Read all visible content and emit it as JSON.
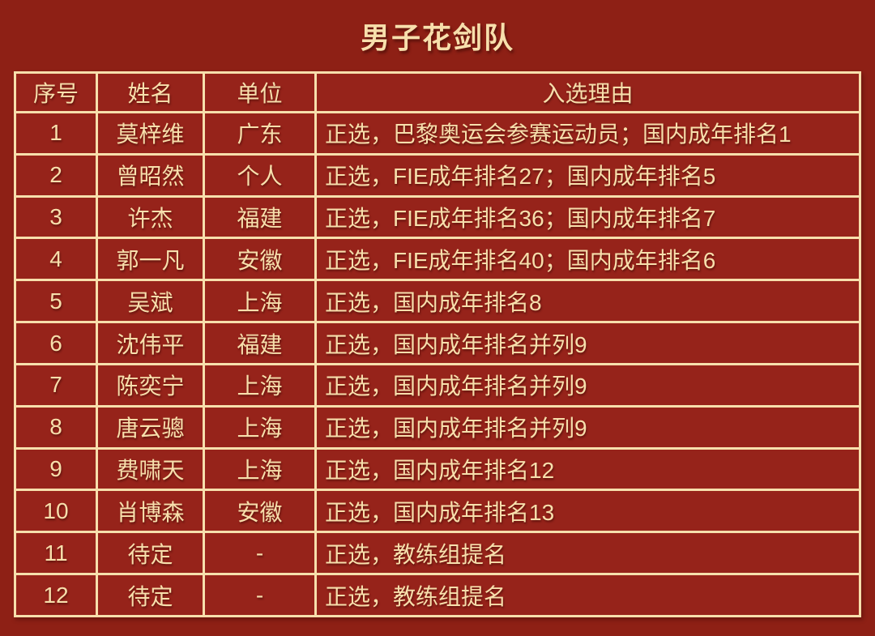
{
  "page": {
    "background_color": "#8E2015",
    "cell_background_color": "#96231A",
    "accent_text_color": "#F7DFAC"
  },
  "title": "男子花剑队",
  "table": {
    "headers": [
      "序号",
      "姓名",
      "单位",
      "入选理由"
    ],
    "rows": [
      {
        "no": "1",
        "name": "莫梓维",
        "unit": "广东",
        "reason": "正选，巴黎奥运会参赛运动员；国内成年排名1"
      },
      {
        "no": "2",
        "name": "曾昭然",
        "unit": "个人",
        "reason": "正选，FIE成年排名27；国内成年排名5"
      },
      {
        "no": "3",
        "name": "许杰",
        "unit": "福建",
        "reason": "正选，FIE成年排名36；国内成年排名7"
      },
      {
        "no": "4",
        "name": "郭一凡",
        "unit": "安徽",
        "reason": "正选，FIE成年排名40；国内成年排名6"
      },
      {
        "no": "5",
        "name": "吴斌",
        "unit": "上海",
        "reason": "正选，国内成年排名8"
      },
      {
        "no": "6",
        "name": "沈伟平",
        "unit": "福建",
        "reason": "正选，国内成年排名并列9"
      },
      {
        "no": "7",
        "name": "陈奕宁",
        "unit": "上海",
        "reason": "正选，国内成年排名并列9"
      },
      {
        "no": "8",
        "name": "唐云骢",
        "unit": "上海",
        "reason": "正选，国内成年排名并列9"
      },
      {
        "no": "9",
        "name": "费啸天",
        "unit": "上海",
        "reason": "正选，国内成年排名12"
      },
      {
        "no": "10",
        "name": "肖博森",
        "unit": "安徽",
        "reason": "正选，国内成年排名13"
      },
      {
        "no": "11",
        "name": "待定",
        "unit": "-",
        "reason": "正选，教练组提名"
      },
      {
        "no": "12",
        "name": "待定",
        "unit": "-",
        "reason": "正选，教练组提名"
      }
    ]
  }
}
